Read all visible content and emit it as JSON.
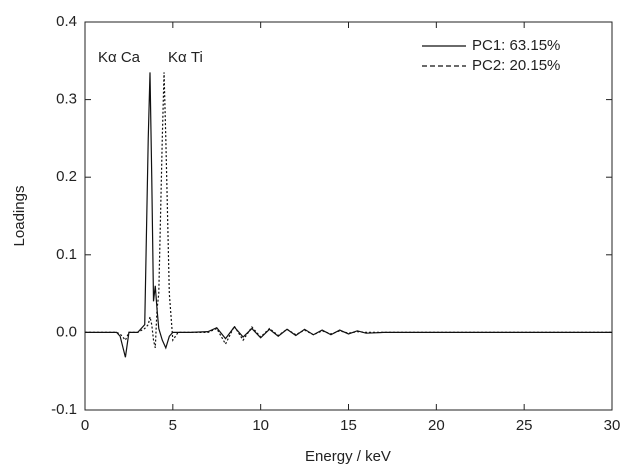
{
  "chart_data": {
    "type": "line",
    "x_label": "Energy / keV",
    "y_label": "Loadings",
    "annotations": [
      "Kα Ca",
      "Kα Ti"
    ],
    "x": [
      0,
      1,
      1.8,
      2.0,
      2.3,
      2.5,
      3.0,
      3.4,
      3.6,
      3.7,
      3.8,
      3.9,
      4.0,
      4.1,
      4.2,
      4.4,
      4.5,
      4.6,
      4.8,
      5.0,
      5.3,
      6,
      7,
      7.5,
      8,
      8.5,
      9,
      9.5,
      10,
      10.5,
      11,
      11.5,
      12,
      12.5,
      13,
      13.5,
      14,
      14.5,
      15,
      15.5,
      16,
      17,
      20,
      25,
      30
    ],
    "series": [
      {
        "name": "PC1: 63.15%",
        "color": "#111111",
        "linestyle": "solid",
        "values": [
          0,
          0,
          0,
          -0.005,
          -0.032,
          0,
          0,
          0.01,
          0.25,
          0.335,
          0.2,
          0.04,
          0.06,
          0.03,
          0.005,
          -0.01,
          -0.015,
          -0.02,
          -0.005,
          0,
          0,
          0,
          0.001,
          0.006,
          -0.008,
          0.007,
          -0.006,
          0.005,
          -0.007,
          0.004,
          -0.005,
          0.004,
          -0.004,
          0.004,
          -0.003,
          0.003,
          -0.003,
          0.003,
          -0.002,
          0.002,
          -0.001,
          0,
          0,
          0,
          0
        ]
      },
      {
        "name": "PC2: 20.15%",
        "color": "#111111",
        "linestyle": "dashed",
        "values": [
          0,
          0,
          0,
          -0.002,
          -0.01,
          0,
          0,
          0.005,
          0.01,
          0.02,
          0.01,
          -0.01,
          -0.02,
          0.03,
          0.05,
          0.25,
          0.335,
          0.25,
          0.05,
          -0.01,
          0,
          0,
          0,
          0.005,
          -0.015,
          0.008,
          -0.01,
          0.007,
          -0.006,
          0.005,
          -0.004,
          0.004,
          -0.003,
          0.003,
          -0.003,
          0.002,
          -0.002,
          0.002,
          -0.001,
          0.001,
          0,
          0,
          0,
          0,
          0
        ]
      }
    ],
    "xlim": [
      0,
      30
    ],
    "xticks": [
      0,
      5,
      10,
      15,
      20,
      25,
      30
    ],
    "ylim": [
      -0.1,
      0.4
    ],
    "yticks": [
      -0.1,
      {
        "value": 0,
        "label": "0.0"
      },
      0.1,
      0.2,
      0.3,
      0.4
    ],
    "legend": "upper right",
    "grid": false
  }
}
